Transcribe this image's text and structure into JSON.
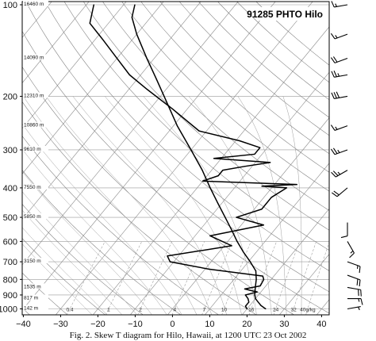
{
  "figure": {
    "caption": "Fig. 2. Skew T diagram for Hilo, Hawaii, at 1200 UTC 23 Oct 2002"
  },
  "chart_data": {
    "type": "skew-t",
    "title": "91285 PHTO Hilo",
    "x_ticks": [
      "−40",
      "−30",
      "−20",
      "−10",
      "0",
      "10",
      "20",
      "30",
      "40"
    ],
    "x_tick_values": [
      -40,
      -30,
      -20,
      -10,
      0,
      10,
      20,
      30,
      40
    ],
    "xlim": [
      -40,
      45
    ],
    "y_ticks": [
      "100",
      "200",
      "300",
      "400",
      "500",
      "600",
      "700",
      "800",
      "900",
      "1000"
    ],
    "y_tick_values": [
      100,
      200,
      300,
      400,
      500,
      600,
      700,
      800,
      900,
      1000
    ],
    "ylim_hpa": [
      1050,
      100
    ],
    "y_scale": "log",
    "grid": true,
    "height_labels": [
      {
        "p": 100,
        "text": "16460 m"
      },
      {
        "p": 150,
        "text": "14090 m"
      },
      {
        "p": 200,
        "text": "12310 m"
      },
      {
        "p": 250,
        "text": "10860 m"
      },
      {
        "p": 300,
        "text": "9610 m"
      },
      {
        "p": 400,
        "text": "7550 m"
      },
      {
        "p": 500,
        "text": "5850 m"
      },
      {
        "p": 700,
        "text": "3150 m"
      },
      {
        "p": 850,
        "text": "1535 m"
      },
      {
        "p": 925,
        "text": "817 m"
      },
      {
        "p": 1000,
        "text": "142 m"
      }
    ],
    "mixing_ratio_label": "g/kg",
    "mixing_ratio_lines": [
      {
        "value": 0.4,
        "label": "0.4"
      },
      {
        "value": 1,
        "label": "1"
      },
      {
        "value": 2,
        "label": "2"
      },
      {
        "value": 4,
        "label": "4"
      },
      {
        "value": 7,
        "label": "7"
      },
      {
        "value": 10,
        "label": "10"
      },
      {
        "value": 16,
        "label": "16"
      },
      {
        "value": 24,
        "label": "24"
      },
      {
        "value": 32,
        "label": "32"
      },
      {
        "value": 40,
        "label": "40"
      }
    ],
    "series": [
      {
        "kind": "temperature",
        "points": [
          {
            "p": 1000,
            "t": 25
          },
          {
            "p": 975,
            "t": 23
          },
          {
            "p": 950,
            "t": 21.5
          },
          {
            "p": 925,
            "t": 20
          },
          {
            "p": 900,
            "t": 19
          },
          {
            "p": 850,
            "t": 17.5
          },
          {
            "p": 800,
            "t": 16
          },
          {
            "p": 750,
            "t": 14
          },
          {
            "p": 700,
            "t": 10.5
          },
          {
            "p": 650,
            "t": 6.5
          },
          {
            "p": 600,
            "t": 2.5
          },
          {
            "p": 550,
            "t": -1.5
          },
          {
            "p": 500,
            "t": -6
          },
          {
            "p": 450,
            "t": -11
          },
          {
            "p": 400,
            "t": -16.5
          },
          {
            "p": 350,
            "t": -22.5
          },
          {
            "p": 300,
            "t": -30
          },
          {
            "p": 250,
            "t": -39
          },
          {
            "p": 200,
            "t": -49
          },
          {
            "p": 175,
            "t": -55
          },
          {
            "p": 150,
            "t": -62
          },
          {
            "p": 125,
            "t": -70
          },
          {
            "p": 110,
            "t": -75
          },
          {
            "p": 100,
            "t": -77
          }
        ]
      },
      {
        "kind": "dewpoint",
        "points": [
          {
            "p": 1000,
            "t": 20
          },
          {
            "p": 980,
            "t": 19
          },
          {
            "p": 950,
            "t": 19
          },
          {
            "p": 925,
            "t": 18
          },
          {
            "p": 900,
            "t": 16.5
          },
          {
            "p": 880,
            "t": 19
          },
          {
            "p": 860,
            "t": 15
          },
          {
            "p": 840,
            "t": 18.5
          },
          {
            "p": 800,
            "t": 18
          },
          {
            "p": 780,
            "t": 17
          },
          {
            "p": 740,
            "t": 1
          },
          {
            "p": 700,
            "t": -11
          },
          {
            "p": 670,
            "t": -13
          },
          {
            "p": 620,
            "t": 2
          },
          {
            "p": 575,
            "t": -6
          },
          {
            "p": 530,
            "t": 6
          },
          {
            "p": 500,
            "t": -3
          },
          {
            "p": 470,
            "t": 2
          },
          {
            "p": 430,
            "t": 2
          },
          {
            "p": 400,
            "t": 4
          },
          {
            "p": 395,
            "t": -3
          },
          {
            "p": 390,
            "t": 6
          },
          {
            "p": 380,
            "t": -20
          },
          {
            "p": 365,
            "t": -17
          },
          {
            "p": 350,
            "t": -17
          },
          {
            "p": 340,
            "t": -12
          },
          {
            "p": 330,
            "t": -6
          },
          {
            "p": 320,
            "t": -22
          },
          {
            "p": 310,
            "t": -12
          },
          {
            "p": 295,
            "t": -12
          },
          {
            "p": 280,
            "t": -19
          },
          {
            "p": 260,
            "t": -32
          },
          {
            "p": 220,
            "t": -44
          },
          {
            "p": 190,
            "t": -55
          },
          {
            "p": 170,
            "t": -63
          },
          {
            "p": 150,
            "t": -70
          },
          {
            "p": 130,
            "t": -78
          },
          {
            "p": 115,
            "t": -85
          },
          {
            "p": 100,
            "t": -88
          }
        ]
      }
    ],
    "wind_barbs": [
      {
        "p": 1000,
        "dir": 80,
        "speed": 5
      },
      {
        "p": 925,
        "dir": 90,
        "speed": 15
      },
      {
        "p": 850,
        "dir": 100,
        "speed": 20
      },
      {
        "p": 775,
        "dir": 110,
        "speed": 20
      },
      {
        "p": 700,
        "dir": 110,
        "speed": 15
      },
      {
        "p": 600,
        "dir": 150,
        "speed": 15
      },
      {
        "p": 520,
        "dir": 180,
        "speed": 10
      },
      {
        "p": 400,
        "dir": 230,
        "speed": 20
      },
      {
        "p": 350,
        "dir": 240,
        "speed": 25
      },
      {
        "p": 300,
        "dir": 250,
        "speed": 25
      },
      {
        "p": 250,
        "dir": 250,
        "speed": 15
      },
      {
        "p": 200,
        "dir": 260,
        "speed": 30
      },
      {
        "p": 170,
        "dir": 260,
        "speed": 25
      },
      {
        "p": 150,
        "dir": 250,
        "speed": 20
      },
      {
        "p": 125,
        "dir": 250,
        "speed": 15
      },
      {
        "p": 100,
        "dir": 260,
        "speed": 15
      }
    ]
  }
}
